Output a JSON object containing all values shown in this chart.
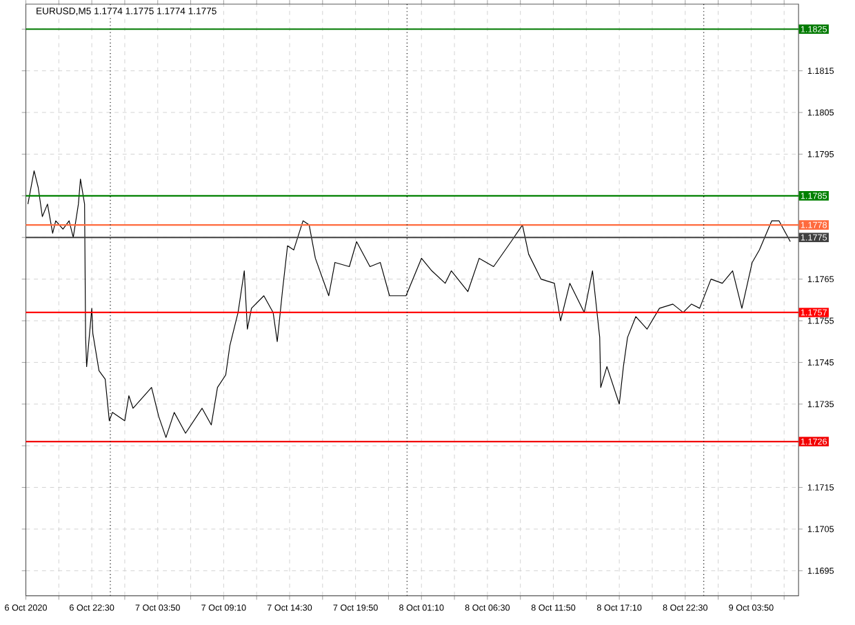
{
  "chart_data": {
    "type": "line",
    "title": "EURUSD,M5  1.1774 1.1775 1.1774 1.1775",
    "xlim": [
      "2020-10-06T17:10",
      "2020-10-09T07:40"
    ],
    "ylim": [
      1.1689,
      1.1831
    ],
    "xticks": [
      {
        "value": "2020-10-06T17:10",
        "label": "6 Oct 2020"
      },
      {
        "value": "2020-10-06T19:50",
        "label": null
      },
      {
        "value": "2020-10-06T22:30",
        "label": "6 Oct 22:30"
      },
      {
        "value": "2020-10-07T01:10",
        "label": null
      },
      {
        "value": "2020-10-07T03:50",
        "label": "7 Oct 03:50"
      },
      {
        "value": "2020-10-07T06:30",
        "label": null
      },
      {
        "value": "2020-10-07T09:10",
        "label": "7 Oct 09:10"
      },
      {
        "value": "2020-10-07T11:50",
        "label": null
      },
      {
        "value": "2020-10-07T14:30",
        "label": "7 Oct 14:30"
      },
      {
        "value": "2020-10-07T17:10",
        "label": null
      },
      {
        "value": "2020-10-07T19:50",
        "label": "7 Oct 19:50"
      },
      {
        "value": "2020-10-07T22:30",
        "label": null
      },
      {
        "value": "2020-10-08T01:10",
        "label": "8 Oct 01:10"
      },
      {
        "value": "2020-10-08T03:50",
        "label": null
      },
      {
        "value": "2020-10-08T06:30",
        "label": "8 Oct 06:30"
      },
      {
        "value": "2020-10-08T09:10",
        "label": null
      },
      {
        "value": "2020-10-08T11:50",
        "label": "8 Oct 11:50"
      },
      {
        "value": "2020-10-08T14:30",
        "label": null
      },
      {
        "value": "2020-10-08T17:10",
        "label": "8 Oct 17:10"
      },
      {
        "value": "2020-10-08T19:50",
        "label": null
      },
      {
        "value": "2020-10-08T22:30",
        "label": "8 Oct 22:30"
      },
      {
        "value": "2020-10-09T01:10",
        "label": null
      },
      {
        "value": "2020-10-09T03:50",
        "label": "9 Oct 03:50"
      },
      {
        "value": "2020-10-09T06:30",
        "label": null
      }
    ],
    "yticks": [
      1.1695,
      1.1705,
      1.1715,
      {
        "value": 1.1725,
        "label": null
      },
      1.1735,
      1.1745,
      1.1755,
      1.1765,
      {
        "value": 1.1775,
        "label": null
      },
      {
        "value": 1.1785,
        "label": null
      },
      1.1795,
      1.1805,
      1.1815,
      {
        "value": 1.1825,
        "label": null
      }
    ],
    "grid": true,
    "marker": "none",
    "line_style": "solid",
    "series": [
      {
        "color": "#000000",
        "x": [
          "2020-10-06T17:20",
          "2020-10-06T17:50",
          "2020-10-06T18:10",
          "2020-10-06T18:30",
          "2020-10-06T18:55",
          "2020-10-06T19:20",
          "2020-10-06T19:35",
          "2020-10-06T20:10",
          "2020-10-06T20:40",
          "2020-10-06T21:00",
          "2020-10-06T21:25",
          "2020-10-06T21:35",
          "2020-10-06T21:55",
          "2020-10-06T22:00",
          "2020-10-06T22:05",
          "2020-10-06T22:30",
          "2020-10-06T22:35",
          "2020-10-06T23:05",
          "2020-10-06T23:35",
          "2020-10-06T23:55",
          "2020-10-07T00:10",
          "2020-10-07T01:10",
          "2020-10-07T01:30",
          "2020-10-07T01:50",
          "2020-10-07T03:20",
          "2020-10-07T03:55",
          "2020-10-07T04:30",
          "2020-10-07T05:10",
          "2020-10-07T06:05",
          "2020-10-07T07:25",
          "2020-10-07T08:10",
          "2020-10-07T08:40",
          "2020-10-07T09:20",
          "2020-10-07T09:40",
          "2020-10-07T10:20",
          "2020-10-07T10:50",
          "2020-10-07T11:05",
          "2020-10-07T11:25",
          "2020-10-07T12:25",
          "2020-10-07T13:10",
          "2020-10-07T13:30",
          "2020-10-07T13:55",
          "2020-10-07T14:20",
          "2020-10-07T14:50",
          "2020-10-07T15:35",
          "2020-10-07T16:05",
          "2020-10-07T16:35",
          "2020-10-07T17:40",
          "2020-10-07T18:10",
          "2020-10-07T19:20",
          "2020-10-07T19:55",
          "2020-10-07T21:00",
          "2020-10-07T21:50",
          "2020-10-07T22:35",
          "2020-10-07T23:55",
          "2020-10-08T01:10",
          "2020-10-08T02:00",
          "2020-10-08T03:05",
          "2020-10-08T03:35",
          "2020-10-08T04:55",
          "2020-10-08T05:50",
          "2020-10-08T07:00",
          "2020-10-08T08:25",
          "2020-10-08T09:20",
          "2020-10-08T09:50",
          "2020-10-08T10:50",
          "2020-10-08T11:55",
          "2020-10-08T12:25",
          "2020-10-08T13:10",
          "2020-10-08T14:20",
          "2020-10-08T15:00",
          "2020-10-08T15:35",
          "2020-10-08T15:40",
          "2020-10-08T16:10",
          "2020-10-08T17:10",
          "2020-10-08T17:30",
          "2020-10-08T17:50",
          "2020-10-08T18:30",
          "2020-10-08T19:25",
          "2020-10-08T20:25",
          "2020-10-08T21:30",
          "2020-10-08T22:20",
          "2020-10-08T23:00",
          "2020-10-08T23:40",
          "2020-10-09T00:35",
          "2020-10-09T01:30",
          "2020-10-09T02:20",
          "2020-10-09T03:05",
          "2020-10-09T03:55",
          "2020-10-09T04:30",
          "2020-10-09T05:30",
          "2020-10-09T06:05",
          "2020-10-09T07:00"
        ],
        "values": [
          1.1783,
          1.1791,
          1.1787,
          1.178,
          1.1783,
          1.1776,
          1.1779,
          1.1777,
          1.1779,
          1.1775,
          1.1783,
          1.1789,
          1.1783,
          1.1751,
          1.1744,
          1.1758,
          1.1752,
          1.1743,
          1.1741,
          1.1731,
          1.1733,
          1.1731,
          1.1737,
          1.1734,
          1.1739,
          1.1732,
          1.1727,
          1.1733,
          1.1728,
          1.1734,
          1.173,
          1.1739,
          1.1742,
          1.1749,
          1.1757,
          1.1767,
          1.1753,
          1.1758,
          1.1761,
          1.1757,
          1.175,
          1.1762,
          1.1773,
          1.1772,
          1.1779,
          1.1778,
          1.177,
          1.1761,
          1.1769,
          1.1768,
          1.1774,
          1.1768,
          1.1769,
          1.1761,
          1.1761,
          1.177,
          1.1767,
          1.1764,
          1.1767,
          1.1762,
          1.177,
          1.1768,
          1.1774,
          1.1778,
          1.1771,
          1.1765,
          1.1764,
          1.1755,
          1.1764,
          1.1757,
          1.1767,
          1.1751,
          1.1739,
          1.1744,
          1.1735,
          1.1744,
          1.1751,
          1.1756,
          1.1753,
          1.1758,
          1.1759,
          1.1757,
          1.1759,
          1.1758,
          1.1765,
          1.1764,
          1.1767,
          1.1758,
          1.1769,
          1.1772,
          1.1779,
          1.1779,
          1.1774
        ]
      }
    ],
    "ref_lines": [
      {
        "axis": "y",
        "value": 1.1825,
        "label": "1.1825",
        "color": "#007a00"
      },
      {
        "axis": "y",
        "value": 1.1785,
        "label": "1.1785",
        "color": "#008000"
      },
      {
        "axis": "y",
        "value": 1.1778,
        "label": "1.1778",
        "color": "#ff6a3d"
      },
      {
        "axis": "y",
        "value": 1.1775,
        "label": "1.1775",
        "color": "#404040"
      },
      {
        "axis": "y",
        "value": 1.1757,
        "label": "1.1757",
        "color": "#ff0000"
      },
      {
        "axis": "y",
        "value": 1.1726,
        "label": "1.1726",
        "color": "#f20000"
      },
      {
        "axis": "x",
        "value": "2020-10-07T00:00",
        "color": "#000000",
        "line_style": "dotted"
      },
      {
        "axis": "x",
        "value": "2020-10-08T00:00",
        "color": "#000000",
        "line_style": "dotted"
      },
      {
        "axis": "x",
        "value": "2020-10-09T00:00",
        "color": "#000000",
        "line_style": "dotted"
      }
    ]
  }
}
